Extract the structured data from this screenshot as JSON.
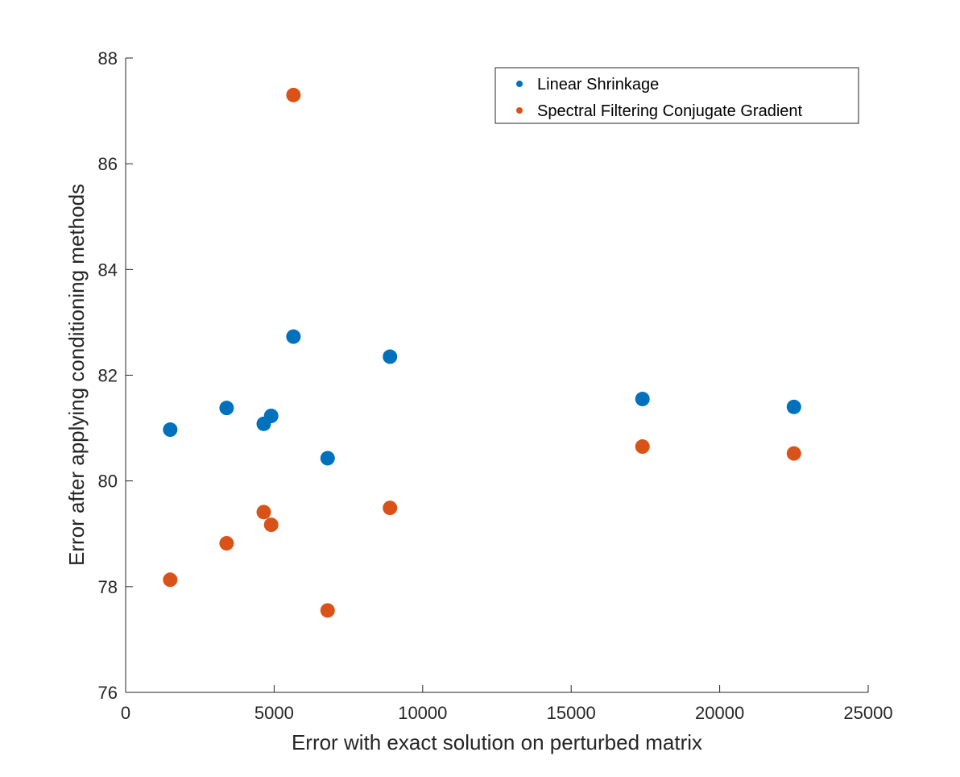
{
  "chart_data": {
    "type": "scatter",
    "title": "",
    "xlabel": "Error with exact solution on perturbed matrix",
    "ylabel": "Error after applying conditioning methods",
    "xlim": [
      0,
      25000
    ],
    "ylim": [
      76,
      88
    ],
    "xticks": [
      0,
      5000,
      10000,
      15000,
      20000,
      25000
    ],
    "yticks": [
      76,
      78,
      80,
      82,
      84,
      86,
      88
    ],
    "grid": false,
    "legend_position": "top-right",
    "series": [
      {
        "name": "Linear Shrinkage",
        "color": "#0072BD",
        "points": [
          {
            "x": 1500,
            "y": 80.97
          },
          {
            "x": 3400,
            "y": 81.38
          },
          {
            "x": 4650,
            "y": 81.08
          },
          {
            "x": 4900,
            "y": 81.23
          },
          {
            "x": 5650,
            "y": 82.73
          },
          {
            "x": 6800,
            "y": 80.43
          },
          {
            "x": 8900,
            "y": 82.35
          },
          {
            "x": 17400,
            "y": 81.55
          },
          {
            "x": 22500,
            "y": 81.4
          }
        ]
      },
      {
        "name": "Spectral Filtering Conjugate Gradient",
        "color": "#D95319",
        "points": [
          {
            "x": 1500,
            "y": 78.13
          },
          {
            "x": 3400,
            "y": 78.82
          },
          {
            "x": 4650,
            "y": 79.41
          },
          {
            "x": 4900,
            "y": 79.17
          },
          {
            "x": 5650,
            "y": 87.3
          },
          {
            "x": 6800,
            "y": 77.55
          },
          {
            "x": 8900,
            "y": 79.49
          },
          {
            "x": 17400,
            "y": 80.65
          },
          {
            "x": 22500,
            "y": 80.52
          }
        ]
      }
    ]
  }
}
